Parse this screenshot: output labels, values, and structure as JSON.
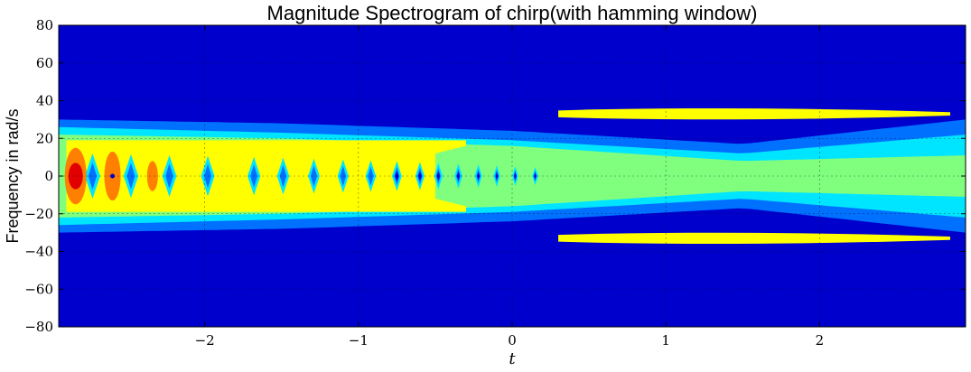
{
  "chart_data": {
    "type": "heatmap",
    "title": "Magnitude Spectrogram of chirp(with hamming window)",
    "xlabel": "t",
    "ylabel": "Frequency in rad/s",
    "xlim": [
      -2.95,
      2.95
    ],
    "ylim": [
      -80,
      80
    ],
    "xticks": [
      -2,
      -1,
      0,
      1,
      2
    ],
    "xtick_labels": [
      "−2",
      "−1",
      "0",
      "1",
      "2"
    ],
    "yticks": [
      80,
      60,
      40,
      20,
      0,
      -20,
      -40,
      -60,
      -80
    ],
    "ytick_labels": [
      "80",
      "60",
      "40",
      "20",
      "0",
      "−20",
      "−40",
      "−60",
      "−80"
    ],
    "grid": true,
    "colormap": "jet",
    "contour_levels": [
      "#0000cd",
      "#0070ff",
      "#00e5ff",
      "#80ff7f",
      "#ffff00",
      "#ff8000",
      "#e00000"
    ],
    "contours": {
      "outer_band": [
        [
          -2.95,
          30
        ],
        [
          -1.5,
          28
        ],
        [
          0,
          24
        ],
        [
          1.5,
          17
        ],
        [
          2.95,
          30
        ]
      ],
      "mid_band": [
        [
          -2.95,
          26
        ],
        [
          -1.5,
          23
        ],
        [
          0,
          19
        ],
        [
          1.5,
          12
        ],
        [
          2.95,
          22
        ]
      ],
      "inner_band": [
        [
          -2.95,
          22
        ],
        [
          -1.5,
          20
        ],
        [
          0,
          16
        ],
        [
          1.5,
          8
        ],
        [
          2.95,
          11
        ]
      ]
    }
  }
}
